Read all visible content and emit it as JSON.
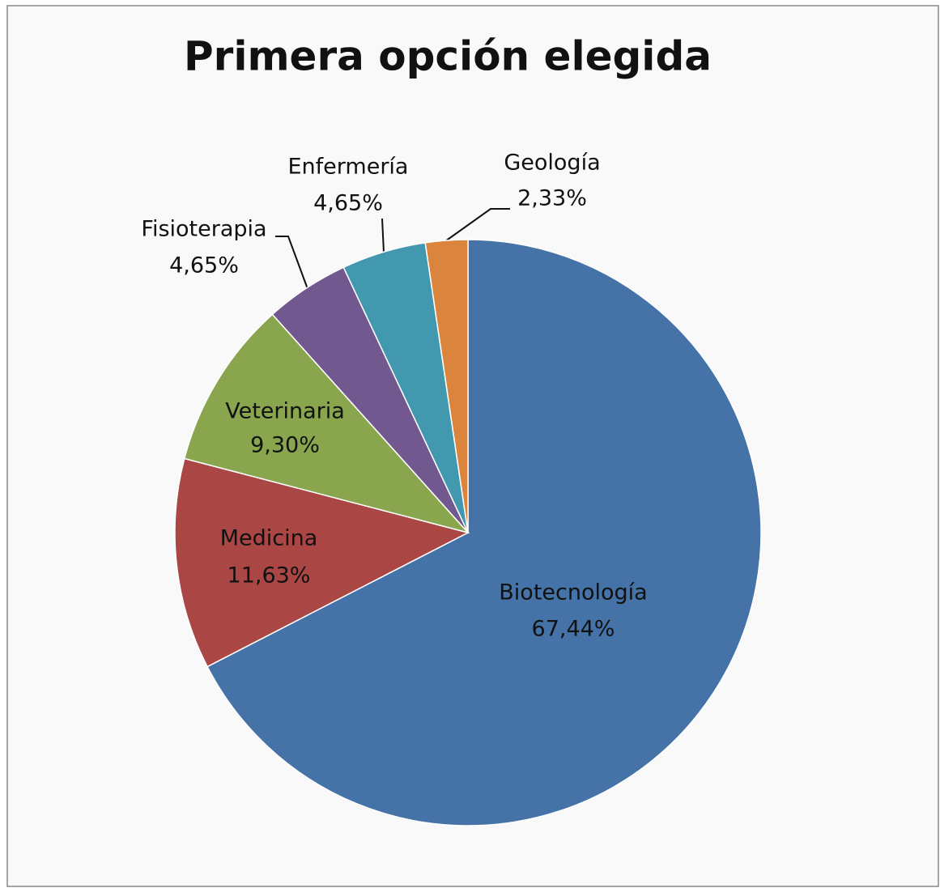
{
  "chart_data": {
    "type": "pie",
    "title": "Primera opción elegida",
    "categories": [
      "Biotecnología",
      "Medicina",
      "Veterinaria",
      "Fisioterapia",
      "Enfermería",
      "Geología"
    ],
    "values": [
      67.44,
      11.63,
      9.3,
      4.65,
      4.65,
      2.33
    ],
    "value_labels": [
      "67,44%",
      "11,63%",
      "9,30%",
      "4,65%",
      "4,65%",
      "2,33%"
    ],
    "colors": [
      "#4572a7",
      "#aa4643",
      "#89a54e",
      "#71588f",
      "#4198af",
      "#db843d"
    ]
  }
}
